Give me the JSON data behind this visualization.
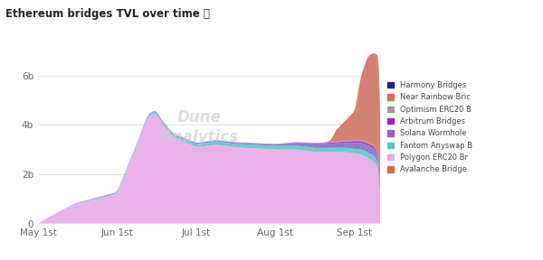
{
  "title": "Ethereum bridges TVL over time 📈",
  "watermark_line1": "Dune",
  "watermark_line2": "Analytics",
  "x_ticks": [
    "May 1st",
    "Jun 1st",
    "Jul 1st",
    "Aug 1st",
    "Sep 1st"
  ],
  "y_ticks": [
    "0",
    "2b",
    "4b",
    "6b"
  ],
  "bg_color": "#ffffff",
  "colors": {
    "polygon": "#e8a8e8",
    "fantom": "#50c8c8",
    "solana": "#8866cc",
    "arbitrum": "#aa22aa",
    "optimism": "#999999",
    "near": "#d07060",
    "harmony": "#222288",
    "avalanche": "#e06848"
  },
  "legend_items": [
    [
      "Harmony Bridges",
      "#222288"
    ],
    [
      "Near Rainbow Bric",
      "#d07060"
    ],
    [
      "Optimism ERC20 B",
      "#999999"
    ],
    [
      "Arbitrum Bridges",
      "#aa22aa"
    ],
    [
      "Solana Wormhole",
      "#8866cc"
    ],
    [
      "Fantom Anyswap B",
      "#50c8c8"
    ],
    [
      "Polygon ERC20 Br",
      "#e8a8e8"
    ],
    [
      "Avalanche Bridge",
      "#e06848"
    ]
  ]
}
